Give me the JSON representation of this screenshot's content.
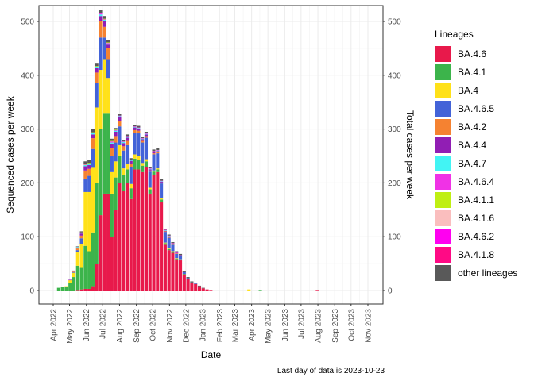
{
  "chart_data": {
    "type": "bar",
    "stacked": true,
    "xlabel": "Date",
    "ylabel_left": "Sequenced cases per week",
    "ylabel_right": "Total cases per week",
    "caption": "Last day of data is 2023-10-23",
    "ylim": [
      0,
      520
    ],
    "y_ticks": [
      0,
      100,
      200,
      300,
      400,
      500
    ],
    "y_tick_labels": [
      "0",
      "100",
      "200",
      "300",
      "400",
      "500"
    ],
    "x_tick_labels": [
      "Apr 2022",
      "May 2022",
      "Jun 2022",
      "Jul 2022",
      "Aug 2022",
      "Sep 2022",
      "Oct 2022",
      "Nov 2022",
      "Dec 2022",
      "Jan 2023",
      "Feb 2023",
      "Mar 2023",
      "Apr 2023",
      "May 2023",
      "Jun 2023",
      "Jul 2023",
      "Aug 2023",
      "Sep 2023",
      "Oct 2023",
      "Nov 2023"
    ],
    "grid": true,
    "legend_position": "right",
    "legend_title": "Lineages",
    "series": [
      {
        "name": "BA.4.6",
        "color": "#E8194B"
      },
      {
        "name": "BA.4.1",
        "color": "#3CB44B"
      },
      {
        "name": "BA.4",
        "color": "#FFE119"
      },
      {
        "name": "BA.4.6.5",
        "color": "#4363D8"
      },
      {
        "name": "BA.4.2",
        "color": "#F58231"
      },
      {
        "name": "BA.4.4",
        "color": "#911EB4"
      },
      {
        "name": "BA.4.7",
        "color": "#42F4F4"
      },
      {
        "name": "BA.4.6.4",
        "color": "#F032E6"
      },
      {
        "name": "BA.4.1.1",
        "color": "#BFEF12"
      },
      {
        "name": "BA.4.1.6",
        "color": "#FABEBE"
      },
      {
        "name": "BA.4.6.2",
        "color": "#FF00F0"
      },
      {
        "name": "BA.4.1.8",
        "color": "#FF0A85"
      },
      {
        "name": "other lineages",
        "color": "#595959"
      }
    ],
    "weeks": [
      {
        "date": "2022-04-11",
        "total": 5,
        "counts": [
          0,
          5,
          0,
          0,
          0,
          0,
          0,
          0,
          0,
          0,
          0,
          0,
          0
        ]
      },
      {
        "date": "2022-04-18",
        "total": 7,
        "counts": [
          0,
          6,
          1,
          0,
          0,
          0,
          0,
          0,
          0,
          0,
          0,
          0,
          0
        ]
      },
      {
        "date": "2022-04-25",
        "total": 8,
        "counts": [
          0,
          7,
          1,
          0,
          0,
          0,
          0,
          0,
          0,
          0,
          0,
          0,
          0
        ]
      },
      {
        "date": "2022-05-02",
        "total": 20,
        "counts": [
          0,
          14,
          5,
          0,
          0,
          1,
          0,
          0,
          0,
          0,
          0,
          0,
          0
        ]
      },
      {
        "date": "2022-05-09",
        "total": 37,
        "counts": [
          0,
          25,
          8,
          1,
          1,
          1,
          0,
          0,
          0,
          0,
          0,
          0,
          1
        ]
      },
      {
        "date": "2022-05-16",
        "total": 82,
        "counts": [
          1,
          45,
          25,
          4,
          3,
          2,
          1,
          0,
          0,
          0,
          0,
          0,
          1
        ]
      },
      {
        "date": "2022-05-23",
        "total": 110,
        "counts": [
          2,
          40,
          45,
          10,
          5,
          4,
          1,
          1,
          0,
          0,
          0,
          0,
          2
        ]
      },
      {
        "date": "2022-05-30",
        "total": 240,
        "counts": [
          3,
          80,
          100,
          25,
          15,
          8,
          2,
          1,
          1,
          0,
          0,
          0,
          5
        ]
      },
      {
        "date": "2022-06-06",
        "total": 243,
        "counts": [
          3,
          70,
          110,
          30,
          13,
          7,
          2,
          1,
          1,
          0,
          0,
          0,
          6
        ]
      },
      {
        "date": "2022-06-13",
        "total": 300,
        "counts": [
          8,
          100,
          120,
          35,
          20,
          7,
          2,
          1,
          1,
          0,
          0,
          0,
          6
        ]
      },
      {
        "date": "2022-06-20",
        "total": 423,
        "counts": [
          50,
          150,
          140,
          45,
          20,
          8,
          2,
          1,
          1,
          0,
          0,
          0,
          6
        ]
      },
      {
        "date": "2022-06-27",
        "total": 522,
        "counts": [
          140,
          160,
          110,
          60,
          30,
          10,
          3,
          2,
          1,
          0,
          0,
          0,
          6
        ]
      },
      {
        "date": "2022-07-04",
        "total": 510,
        "counts": [
          180,
          150,
          100,
          40,
          20,
          10,
          3,
          1,
          1,
          0,
          0,
          0,
          5
        ]
      },
      {
        "date": "2022-07-11",
        "total": 465,
        "counts": [
          180,
          150,
          65,
          35,
          20,
          7,
          2,
          1,
          1,
          0,
          0,
          0,
          4
        ]
      },
      {
        "date": "2022-07-18",
        "total": 282,
        "counts": [
          100,
          80,
          40,
          30,
          15,
          8,
          2,
          2,
          1,
          0,
          0,
          0,
          4
        ]
      },
      {
        "date": "2022-07-25",
        "total": 302,
        "counts": [
          150,
          60,
          30,
          35,
          12,
          8,
          2,
          1,
          1,
          0,
          0,
          0,
          3
        ]
      },
      {
        "date": "2022-08-01",
        "total": 328,
        "counts": [
          200,
          50,
          20,
          35,
          10,
          7,
          2,
          1,
          0,
          0,
          0,
          0,
          3
        ]
      },
      {
        "date": "2022-08-08",
        "total": 280,
        "counts": [
          185,
          30,
          12,
          33,
          8,
          6,
          2,
          1,
          0,
          0,
          0,
          0,
          3
        ]
      },
      {
        "date": "2022-08-15",
        "total": 290,
        "counts": [
          200,
          25,
          10,
          35,
          8,
          6,
          2,
          1,
          0,
          0,
          0,
          0,
          3
        ]
      },
      {
        "date": "2022-08-22",
        "total": 246,
        "counts": [
          170,
          20,
          8,
          32,
          6,
          5,
          1,
          1,
          0,
          0,
          0,
          0,
          3
        ]
      },
      {
        "date": "2022-08-29",
        "total": 308,
        "counts": [
          225,
          20,
          8,
          40,
          5,
          5,
          1,
          1,
          0,
          0,
          0,
          0,
          3
        ]
      },
      {
        "date": "2022-09-05",
        "total": 306,
        "counts": [
          225,
          18,
          7,
          42,
          5,
          4,
          1,
          1,
          0,
          0,
          0,
          0,
          3
        ]
      },
      {
        "date": "2022-09-12",
        "total": 286,
        "counts": [
          220,
          12,
          5,
          38,
          3,
          3,
          1,
          1,
          0,
          0,
          0,
          0,
          3
        ]
      },
      {
        "date": "2022-09-19",
        "total": 295,
        "counts": [
          230,
          10,
          4,
          40,
          3,
          3,
          1,
          1,
          0,
          0,
          0,
          0,
          3
        ]
      },
      {
        "date": "2022-09-26",
        "total": 230,
        "counts": [
          180,
          8,
          3,
          30,
          2,
          2,
          1,
          1,
          0,
          0,
          0,
          0,
          3
        ]
      },
      {
        "date": "2022-10-03",
        "total": 262,
        "counts": [
          215,
          6,
          2,
          30,
          2,
          2,
          1,
          1,
          0,
          0,
          0,
          0,
          3
        ]
      },
      {
        "date": "2022-10-10",
        "total": 264,
        "counts": [
          220,
          5,
          2,
          28,
          2,
          2,
          1,
          1,
          0,
          0,
          0,
          0,
          3
        ]
      },
      {
        "date": "2022-10-17",
        "total": 207,
        "counts": [
          165,
          4,
          2,
          28,
          1,
          2,
          1,
          1,
          0,
          0,
          0,
          0,
          3
        ]
      },
      {
        "date": "2022-10-24",
        "total": 115,
        "counts": [
          85,
          3,
          1,
          20,
          1,
          1,
          1,
          1,
          0,
          0,
          0,
          0,
          2
        ]
      },
      {
        "date": "2022-10-31",
        "total": 104,
        "counts": [
          75,
          2,
          1,
          20,
          1,
          1,
          1,
          1,
          0,
          0,
          0,
          0,
          2
        ]
      },
      {
        "date": "2022-11-07",
        "total": 90,
        "counts": [
          70,
          2,
          1,
          12,
          1,
          1,
          0,
          1,
          0,
          0,
          0,
          0,
          2
        ]
      },
      {
        "date": "2022-11-14",
        "total": 73,
        "counts": [
          58,
          1,
          1,
          8,
          1,
          1,
          0,
          1,
          0,
          0,
          0,
          0,
          2
        ]
      },
      {
        "date": "2022-11-21",
        "total": 68,
        "counts": [
          56,
          1,
          1,
          6,
          1,
          1,
          0,
          0,
          0,
          0,
          0,
          0,
          2
        ]
      },
      {
        "date": "2022-11-28",
        "total": 36,
        "counts": [
          30,
          1,
          0,
          3,
          0,
          0,
          0,
          0,
          0,
          0,
          0,
          0,
          2
        ]
      },
      {
        "date": "2022-12-05",
        "total": 25,
        "counts": [
          21,
          0,
          0,
          2,
          0,
          0,
          0,
          0,
          0,
          0,
          0,
          0,
          2
        ]
      },
      {
        "date": "2022-12-12",
        "total": 17,
        "counts": [
          14,
          0,
          0,
          1,
          0,
          0,
          0,
          0,
          0,
          0,
          0,
          0,
          2
        ]
      },
      {
        "date": "2022-12-19",
        "total": 14,
        "counts": [
          12,
          0,
          0,
          1,
          0,
          0,
          0,
          0,
          0,
          0,
          0,
          0,
          1
        ]
      },
      {
        "date": "2022-12-26",
        "total": 9,
        "counts": [
          8,
          0,
          0,
          0,
          0,
          0,
          0,
          0,
          0,
          0,
          0,
          0,
          1
        ]
      },
      {
        "date": "2023-01-02",
        "total": 5,
        "counts": [
          4,
          0,
          0,
          0,
          0,
          0,
          0,
          0,
          0,
          0,
          0,
          0,
          1
        ]
      },
      {
        "date": "2023-01-09",
        "total": 2,
        "counts": [
          2,
          0,
          0,
          0,
          0,
          0,
          0,
          0,
          0,
          0,
          0,
          0,
          0
        ]
      },
      {
        "date": "2023-01-16",
        "total": 1,
        "counts": [
          1,
          0,
          0,
          0,
          0,
          0,
          0,
          0,
          0,
          0,
          0,
          0,
          0
        ]
      },
      {
        "date": "2023-03-27",
        "total": 2,
        "counts": [
          0,
          0,
          2,
          0,
          0,
          0,
          0,
          0,
          0,
          0,
          0,
          0,
          0
        ]
      },
      {
        "date": "2023-04-17",
        "total": 1,
        "counts": [
          0,
          1,
          0,
          0,
          0,
          0,
          0,
          0,
          0,
          0,
          0,
          0,
          0
        ]
      },
      {
        "date": "2023-07-31",
        "total": 1,
        "counts": [
          1,
          0,
          0,
          0,
          0,
          0,
          0,
          0,
          0,
          0,
          0,
          0,
          0
        ]
      }
    ]
  }
}
